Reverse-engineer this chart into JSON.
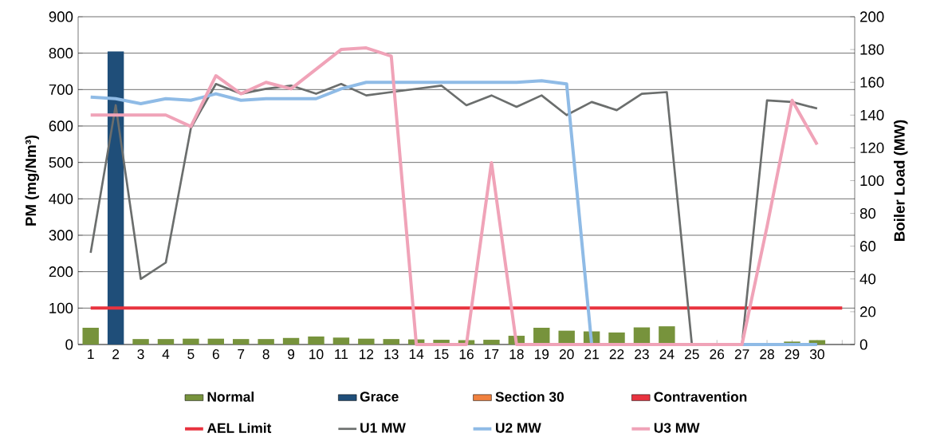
{
  "chart_data": {
    "type": "bar",
    "ylabel": "PM (mg/Nm³)",
    "y2label": "Boiler Load (MW)",
    "categories": [
      "1",
      "2",
      "3",
      "4",
      "5",
      "6",
      "7",
      "8",
      "9",
      "10",
      "11",
      "12",
      "13",
      "14",
      "15",
      "16",
      "17",
      "18",
      "19",
      "20",
      "21",
      "22",
      "23",
      "24",
      "25",
      "26",
      "27",
      "28",
      "29",
      "30",
      null
    ],
    "series": [
      {
        "name": "Normal",
        "color": "#77933c",
        "values": [
          46,
          null,
          15,
          15,
          16,
          16,
          15,
          15,
          18,
          22,
          19,
          16,
          15,
          14,
          13,
          12,
          13,
          24,
          46,
          38,
          36,
          33,
          47,
          50,
          null,
          null,
          null,
          null,
          8,
          12,
          null
        ]
      },
      {
        "name": "Grace",
        "color": "#1f4e79",
        "values": [
          null,
          805,
          null,
          null,
          null,
          null,
          null,
          null,
          null,
          null,
          null,
          null,
          null,
          null,
          null,
          null,
          null,
          null,
          null,
          null,
          null,
          null,
          null,
          null,
          null,
          null,
          null,
          null,
          null,
          null,
          null
        ]
      },
      {
        "name": "Section 30",
        "color": "#f0813f",
        "values": [
          null,
          null,
          null,
          null,
          null,
          null,
          null,
          null,
          null,
          null,
          null,
          null,
          null,
          null,
          null,
          null,
          null,
          null,
          null,
          null,
          null,
          null,
          null,
          null,
          null,
          null,
          null,
          null,
          null,
          null,
          null
        ]
      },
      {
        "name": "Contravention",
        "color": "#e8333f",
        "values": [
          null,
          null,
          null,
          null,
          null,
          null,
          null,
          null,
          null,
          null,
          null,
          null,
          null,
          null,
          null,
          null,
          null,
          null,
          null,
          null,
          null,
          null,
          null,
          null,
          null,
          null,
          null,
          null,
          null,
          null,
          null
        ]
      },
      {
        "name": "AEL Limit",
        "type": "line",
        "color": "#e8333f",
        "values": [
          100,
          100,
          100,
          100,
          100,
          100,
          100,
          100,
          100,
          100,
          100,
          100,
          100,
          100,
          100,
          100,
          100,
          100,
          100,
          100,
          100,
          100,
          100,
          100,
          100,
          100,
          100,
          100,
          100,
          100,
          100
        ]
      },
      {
        "name": "U1 MW",
        "type": "line",
        "axis": "y2",
        "color": "#6b6e6d",
        "values": [
          56,
          146,
          40,
          50,
          132,
          159,
          153,
          156,
          158,
          153,
          159,
          152,
          154,
          156,
          158,
          146,
          152,
          145,
          152,
          140,
          148,
          143,
          153,
          154,
          0,
          0,
          0,
          149,
          148,
          144,
          null
        ]
      },
      {
        "name": "U2 MW",
        "type": "line",
        "axis": "y2",
        "color": "#8fbbe6",
        "values": [
          151,
          150,
          147,
          150,
          149,
          153,
          149,
          150,
          150,
          150,
          156,
          160,
          160,
          160,
          160,
          160,
          160,
          160,
          161,
          159,
          0,
          0,
          0,
          0,
          0,
          0,
          0,
          0,
          0,
          0,
          null
        ]
      },
      {
        "name": "U3 MW",
        "type": "line",
        "axis": "y2",
        "color": "#f0a3b8",
        "values": [
          140,
          140,
          140,
          140,
          133,
          164,
          153,
          160,
          156,
          168,
          180,
          181,
          176,
          0,
          0,
          0,
          111,
          0,
          0,
          0,
          0,
          0,
          0,
          0,
          0,
          0,
          0,
          72,
          149,
          122,
          null
        ]
      }
    ],
    "ylim": [
      0,
      900
    ],
    "yticks": [
      0,
      100,
      200,
      300,
      400,
      500,
      600,
      700,
      800,
      900
    ],
    "y2lim": [
      0,
      200
    ],
    "y2ticks": [
      0,
      20,
      40,
      60,
      80,
      100,
      120,
      140,
      160,
      180,
      200
    ],
    "grid": "y",
    "legend": "bottom"
  }
}
